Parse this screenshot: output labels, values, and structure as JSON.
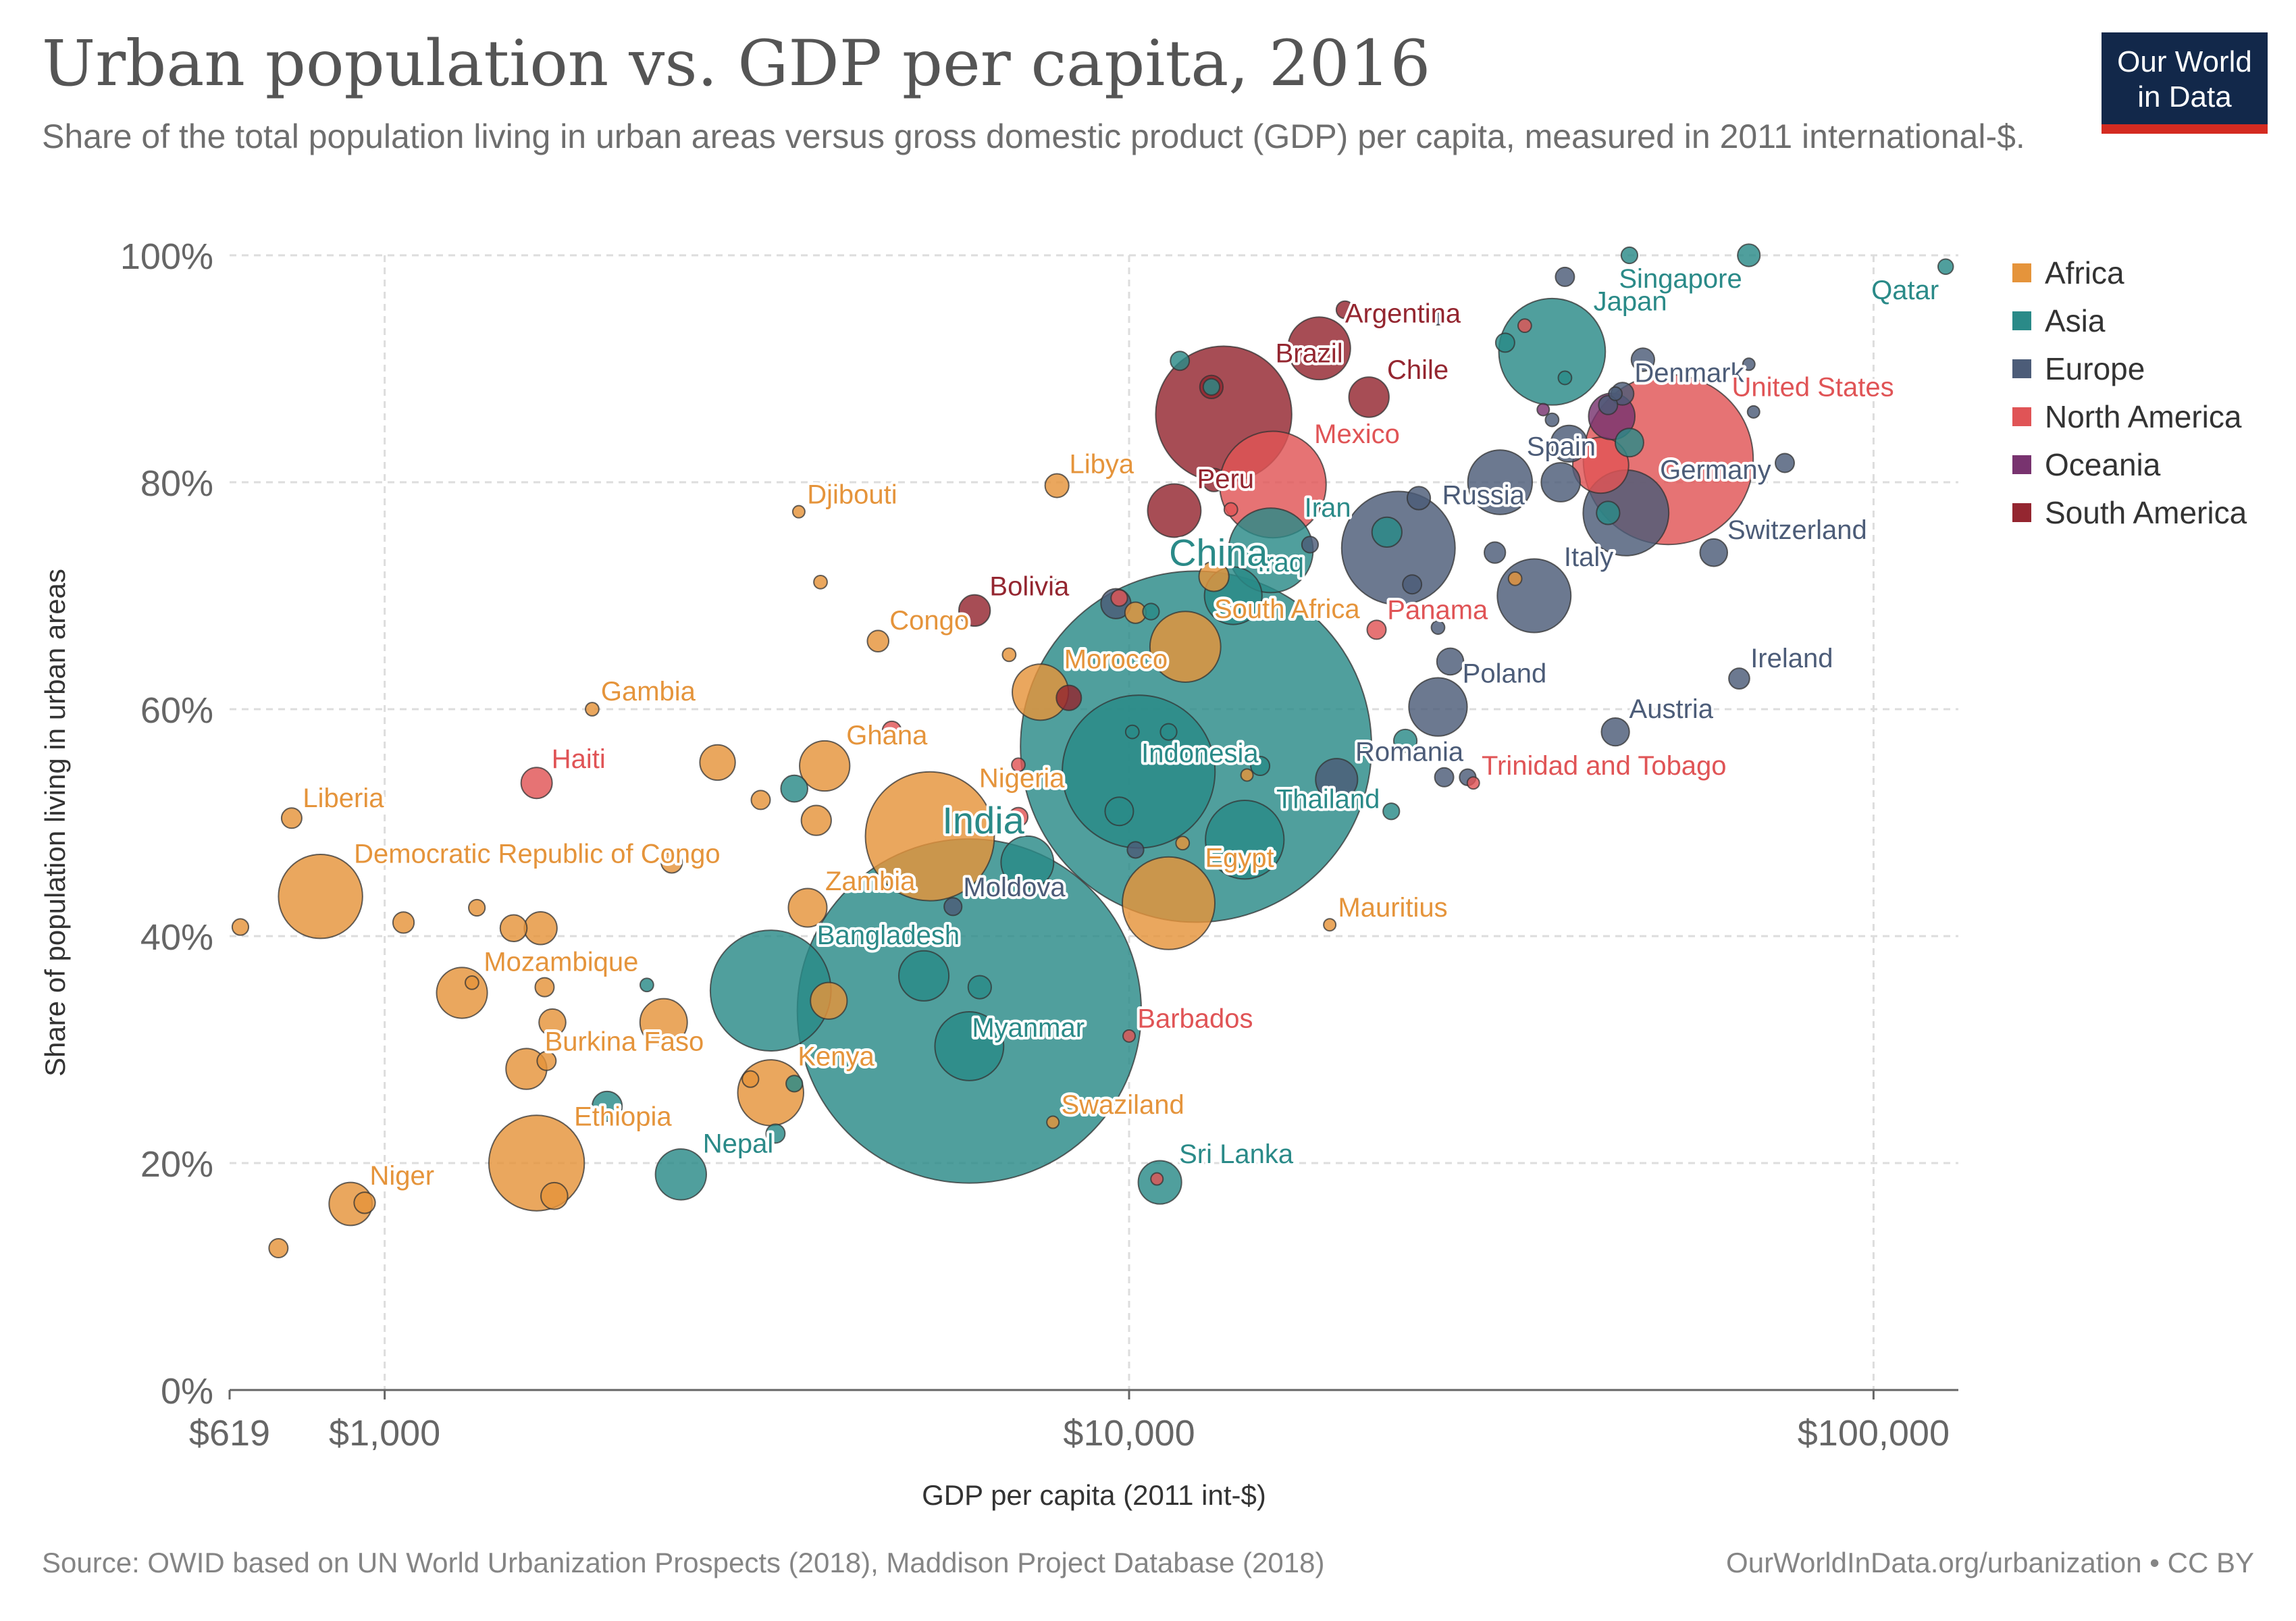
{
  "header": {
    "title": "Urban population vs. GDP per capita, 2016",
    "subtitle": "Share of the total population living in urban areas versus gross domestic product (GDP) per capita, measured in 2011 international-$.",
    "logo_line1": "Our World",
    "logo_line2": "in Data"
  },
  "footer": {
    "source": "Source: OWID based on UN World Urbanization Prospects (2018), Maddison Project Database (2018)",
    "url": "OurWorldInData.org/urbanization • CC BY"
  },
  "colors": {
    "Africa": "#e5943b",
    "Asia": "#2a8a88",
    "Europe": "#4c5c78",
    "North America": "#e05456",
    "Oceania": "#78336f",
    "South America": "#942630"
  },
  "chart_data": {
    "type": "scatter",
    "xlabel": "GDP per capita (2011 int-$)",
    "ylabel": "Share of population living in urban areas",
    "xscale": "log",
    "xlim": [
      619,
      130000
    ],
    "ylim": [
      0,
      100
    ],
    "x_ticks": [
      619,
      1000,
      10000,
      100000
    ],
    "x_tick_labels": [
      "$619",
      "$1,000",
      "$10,000",
      "$100,000"
    ],
    "y_ticks": [
      0,
      20,
      40,
      60,
      80,
      100
    ],
    "y_tick_labels": [
      "0%",
      "20%",
      "40%",
      "60%",
      "80%",
      "100%"
    ],
    "grid": true,
    "legend": [
      "Africa",
      "Asia",
      "Europe",
      "North America",
      "Oceania",
      "South America"
    ],
    "legend_position": "right",
    "points": [
      {
        "label": "Singapore",
        "x": 68000,
        "y": 100,
        "continent": "Asia",
        "pop": 5.6
      },
      {
        "label": "Qatar",
        "x": 125000,
        "y": 99,
        "continent": "Asia",
        "pop": 2.6
      },
      {
        "label": "Japan",
        "x": 37000,
        "y": 91.5,
        "continent": "Asia",
        "pop": 127
      },
      {
        "label": "Argentina",
        "x": 18000,
        "y": 91.8,
        "continent": "South America",
        "pop": 43.9
      },
      {
        "label": "Chile",
        "x": 21000,
        "y": 87.5,
        "continent": "South America",
        "pop": 18
      },
      {
        "label": "Brazil",
        "x": 13400,
        "y": 86,
        "continent": "South America",
        "pop": 207
      },
      {
        "label": "Denmark",
        "x": 46000,
        "y": 87.8,
        "continent": "Europe",
        "pop": 5.7
      },
      {
        "label": "United States",
        "x": 53000,
        "y": 82,
        "continent": "North America",
        "pop": 323
      },
      {
        "label": "Mexico",
        "x": 15600,
        "y": 79.8,
        "continent": "North America",
        "pop": 127
      },
      {
        "label": "Peru",
        "x": 11500,
        "y": 77.5,
        "continent": "South America",
        "pop": 31.8
      },
      {
        "label": "Spain",
        "x": 31500,
        "y": 80,
        "continent": "Europe",
        "pop": 46.5
      },
      {
        "label": "Germany",
        "x": 46500,
        "y": 77.3,
        "continent": "Europe",
        "pop": 82
      },
      {
        "label": "Russia",
        "x": 23000,
        "y": 74.2,
        "continent": "Europe",
        "pop": 144
      },
      {
        "label": "Iran",
        "x": 15500,
        "y": 74,
        "continent": "Asia",
        "pop": 80
      },
      {
        "label": "Switzerland",
        "x": 61000,
        "y": 73.8,
        "continent": "Europe",
        "pop": 8.4
      },
      {
        "label": "Iraq",
        "x": 13800,
        "y": 70,
        "continent": "Asia",
        "pop": 37
      },
      {
        "label": "Italy",
        "x": 35000,
        "y": 70,
        "continent": "Europe",
        "pop": 60.6
      },
      {
        "label": "Bolivia",
        "x": 6200,
        "y": 68.7,
        "continent": "South America",
        "pop": 11
      },
      {
        "label": "Panama",
        "x": 21500,
        "y": 67,
        "continent": "North America",
        "pop": 4
      },
      {
        "label": "South Africa",
        "x": 11900,
        "y": 65.5,
        "continent": "Africa",
        "pop": 56
      },
      {
        "label": "Congo",
        "x": 4600,
        "y": 66,
        "continent": "Africa",
        "pop": 5.1
      },
      {
        "label": "Libya",
        "x": 8000,
        "y": 79.7,
        "continent": "Africa",
        "pop": 6.3
      },
      {
        "label": "Djibouti",
        "x": 3600,
        "y": 77.4,
        "continent": "Africa",
        "pop": 0.9
      },
      {
        "label": "Morocco",
        "x": 7600,
        "y": 61.5,
        "continent": "Africa",
        "pop": 35.3
      },
      {
        "label": "China",
        "x": 12300,
        "y": 56.7,
        "continent": "Asia",
        "pop": 1379
      },
      {
        "label": "Indonesia",
        "x": 10300,
        "y": 54.5,
        "continent": "Asia",
        "pop": 261
      },
      {
        "label": "Poland",
        "x": 26000,
        "y": 60.2,
        "continent": "Europe",
        "pop": 38
      },
      {
        "label": "Ireland",
        "x": 66000,
        "y": 62.7,
        "continent": "Europe",
        "pop": 4.8
      },
      {
        "label": "Austria",
        "x": 45000,
        "y": 58,
        "continent": "Europe",
        "pop": 8.7
      },
      {
        "label": "Gambia",
        "x": 1900,
        "y": 60,
        "continent": "Africa",
        "pop": 2
      },
      {
        "label": "Haiti",
        "x": 1600,
        "y": 53.5,
        "continent": "North America",
        "pop": 10.8
      },
      {
        "label": "Ghana",
        "x": 3900,
        "y": 55,
        "continent": "Africa",
        "pop": 28.2
      },
      {
        "label": "Romania",
        "x": 19000,
        "y": 53.8,
        "continent": "Europe",
        "pop": 19.7
      },
      {
        "label": "Trinidad and Tobago",
        "x": 29000,
        "y": 53.5,
        "continent": "North America",
        "pop": 1.4
      },
      {
        "label": "Liberia",
        "x": 750,
        "y": 50.4,
        "continent": "Africa",
        "pop": 4.6
      },
      {
        "label": "Nigeria",
        "x": 5400,
        "y": 48.8,
        "continent": "Africa",
        "pop": 186
      },
      {
        "label": "Thailand",
        "x": 14300,
        "y": 48.5,
        "continent": "Asia",
        "pop": 69
      },
      {
        "label": "Democratic Republic of Congo",
        "x": 820,
        "y": 43.5,
        "continent": "Africa",
        "pop": 79
      },
      {
        "label": "Zambia",
        "x": 3700,
        "y": 42.5,
        "continent": "Africa",
        "pop": 16.6
      },
      {
        "label": "Moldova",
        "x": 5800,
        "y": 42.6,
        "continent": "Europe",
        "pop": 3.5
      },
      {
        "label": "Egypt",
        "x": 11300,
        "y": 42.9,
        "continent": "Africa",
        "pop": 95.7
      },
      {
        "label": "Mauritius",
        "x": 18600,
        "y": 41,
        "continent": "Africa",
        "pop": 1.3
      },
      {
        "label": "India",
        "x": 6100,
        "y": 33.4,
        "continent": "Asia",
        "pop": 1324
      },
      {
        "label": "Bangladesh",
        "x": 3300,
        "y": 35.2,
        "continent": "Asia",
        "pop": 163
      },
      {
        "label": "Myanmar",
        "x": 6100,
        "y": 30.3,
        "continent": "Asia",
        "pop": 52.9
      },
      {
        "label": "Mozambique",
        "x": 1270,
        "y": 35,
        "continent": "Africa",
        "pop": 28.8
      },
      {
        "label": "Barbados",
        "x": 10000,
        "y": 31.2,
        "continent": "North America",
        "pop": 0.3
      },
      {
        "label": "Burkina Faso",
        "x": 1550,
        "y": 28.3,
        "continent": "Africa",
        "pop": 18.6
      },
      {
        "label": "Kenya",
        "x": 3300,
        "y": 26.2,
        "continent": "Africa",
        "pop": 48.5
      },
      {
        "label": "Swaziland",
        "x": 7900,
        "y": 23.6,
        "continent": "Africa",
        "pop": 1.3
      },
      {
        "label": "Ethiopia",
        "x": 1600,
        "y": 20,
        "continent": "Africa",
        "pop": 102
      },
      {
        "label": "Nepal",
        "x": 2500,
        "y": 19,
        "continent": "Asia",
        "pop": 29
      },
      {
        "label": "Sri Lanka",
        "x": 11000,
        "y": 18.3,
        "continent": "Asia",
        "pop": 21
      },
      {
        "label": "Niger",
        "x": 900,
        "y": 16.4,
        "continent": "Africa",
        "pop": 20.7
      },
      {
        "x": 640,
        "y": 40.8,
        "continent": "Africa",
        "pop": 3
      },
      {
        "x": 720,
        "y": 12.5,
        "continent": "Africa",
        "pop": 4
      },
      {
        "x": 940,
        "y": 16.5,
        "continent": "Africa",
        "pop": 5
      },
      {
        "x": 1060,
        "y": 41.2,
        "continent": "Africa",
        "pop": 5
      },
      {
        "x": 1330,
        "y": 42.5,
        "continent": "Africa",
        "pop": 3
      },
      {
        "x": 1490,
        "y": 40.7,
        "continent": "Africa",
        "pop": 8
      },
      {
        "x": 1620,
        "y": 40.7,
        "continent": "Africa",
        "pop": 12
      },
      {
        "x": 1680,
        "y": 32.4,
        "continent": "Africa",
        "pop": 8
      },
      {
        "x": 1650,
        "y": 29,
        "continent": "Africa",
        "pop": 4
      },
      {
        "x": 1690,
        "y": 17.1,
        "continent": "Africa",
        "pop": 8
      },
      {
        "x": 1640,
        "y": 35.5,
        "continent": "Africa",
        "pop": 4
      },
      {
        "x": 1310,
        "y": 35.9,
        "continent": "Africa",
        "pop": 2
      },
      {
        "x": 2430,
        "y": 46.5,
        "continent": "Africa",
        "pop": 5
      },
      {
        "x": 2370,
        "y": 32.4,
        "continent": "Africa",
        "pop": 25
      },
      {
        "x": 2800,
        "y": 55.3,
        "continent": "Africa",
        "pop": 14
      },
      {
        "x": 3200,
        "y": 52,
        "continent": "Africa",
        "pop": 4
      },
      {
        "x": 3800,
        "y": 50.2,
        "continent": "Africa",
        "pop": 10
      },
      {
        "x": 3850,
        "y": 71.2,
        "continent": "Africa",
        "pop": 2
      },
      {
        "x": 3950,
        "y": 34.3,
        "continent": "Africa",
        "pop": 15
      },
      {
        "x": 3100,
        "y": 27.4,
        "continent": "Africa",
        "pop": 3
      },
      {
        "x": 6900,
        "y": 64.8,
        "continent": "Africa",
        "pop": 2
      },
      {
        "x": 10200,
        "y": 68.5,
        "continent": "Africa",
        "pop": 5
      },
      {
        "x": 11800,
        "y": 48.2,
        "continent": "Africa",
        "pop": 2
      },
      {
        "x": 13000,
        "y": 71.7,
        "continent": "Africa",
        "pop": 10
      },
      {
        "x": 14400,
        "y": 54.2,
        "continent": "Africa",
        "pop": 1
      },
      {
        "x": 33000,
        "y": 71.5,
        "continent": "Africa",
        "pop": 2
      },
      {
        "x": 3550,
        "y": 53,
        "continent": "Asia",
        "pop": 8
      },
      {
        "x": 3550,
        "y": 27,
        "continent": "Asia",
        "pop": 3
      },
      {
        "x": 3350,
        "y": 22.6,
        "continent": "Asia",
        "pop": 4
      },
      {
        "x": 1990,
        "y": 25,
        "continent": "Asia",
        "pop": 10
      },
      {
        "x": 2250,
        "y": 35.7,
        "continent": "Asia",
        "pop": 2
      },
      {
        "x": 5300,
        "y": 36.5,
        "continent": "Asia",
        "pop": 28
      },
      {
        "x": 6300,
        "y": 35.5,
        "continent": "Asia",
        "pop": 6
      },
      {
        "x": 7300,
        "y": 46.5,
        "continent": "Asia",
        "pop": 31
      },
      {
        "x": 9700,
        "y": 51,
        "continent": "Asia",
        "pop": 9
      },
      {
        "x": 10100,
        "y": 58,
        "continent": "Asia",
        "pop": 2
      },
      {
        "x": 10700,
        "y": 68.6,
        "continent": "Asia",
        "pop": 3
      },
      {
        "x": 11300,
        "y": 58,
        "continent": "Asia",
        "pop": 3
      },
      {
        "x": 11700,
        "y": 90.7,
        "continent": "Asia",
        "pop": 4
      },
      {
        "x": 12900,
        "y": 88.4,
        "continent": "Asia",
        "pop": 3
      },
      {
        "x": 15000,
        "y": 55,
        "continent": "Asia",
        "pop": 4
      },
      {
        "x": 22200,
        "y": 75.6,
        "continent": "Asia",
        "pop": 10
      },
      {
        "x": 22500,
        "y": 51,
        "continent": "Asia",
        "pop": 3
      },
      {
        "x": 23500,
        "y": 57.2,
        "continent": "Asia",
        "pop": 6
      },
      {
        "x": 32000,
        "y": 92.3,
        "continent": "Asia",
        "pop": 4
      },
      {
        "x": 38500,
        "y": 89.2,
        "continent": "Asia",
        "pop": 2
      },
      {
        "x": 44000,
        "y": 77.3,
        "continent": "Asia",
        "pop": 6
      },
      {
        "x": 47000,
        "y": 83.5,
        "continent": "Asia",
        "pop": 9
      },
      {
        "x": 47000,
        "y": 100,
        "continent": "Asia",
        "pop": 3
      },
      {
        "x": 9600,
        "y": 69.3,
        "continent": "Europe",
        "pop": 10
      },
      {
        "x": 10200,
        "y": 47.6,
        "continent": "Europe",
        "pop": 3
      },
      {
        "x": 17500,
        "y": 74.5,
        "continent": "Europe",
        "pop": 3
      },
      {
        "x": 18500,
        "y": 77.5,
        "continent": "Europe",
        "pop": 3
      },
      {
        "x": 24000,
        "y": 71,
        "continent": "Europe",
        "pop": 4
      },
      {
        "x": 24500,
        "y": 78.6,
        "continent": "Europe",
        "pop": 6
      },
      {
        "x": 26000,
        "y": 67.2,
        "continent": "Europe",
        "pop": 2
      },
      {
        "x": 27000,
        "y": 64.2,
        "continent": "Europe",
        "pop": 8
      },
      {
        "x": 26500,
        "y": 54,
        "continent": "Europe",
        "pop": 4
      },
      {
        "x": 28500,
        "y": 54,
        "continent": "Europe",
        "pop": 3
      },
      {
        "x": 31000,
        "y": 73.8,
        "continent": "Europe",
        "pop": 5
      },
      {
        "x": 37000,
        "y": 85.5,
        "continent": "Europe",
        "pop": 2
      },
      {
        "x": 39000,
        "y": 83.4,
        "continent": "Europe",
        "pop": 15
      },
      {
        "x": 38500,
        "y": 98.1,
        "continent": "Europe",
        "pop": 4
      },
      {
        "x": 38000,
        "y": 80,
        "continent": "Europe",
        "pop": 17
      },
      {
        "x": 44000,
        "y": 86.8,
        "continent": "Europe",
        "pop": 4
      },
      {
        "x": 45000,
        "y": 87.8,
        "continent": "Europe",
        "pop": 2
      },
      {
        "x": 49000,
        "y": 90.8,
        "continent": "Europe",
        "pop": 6
      },
      {
        "x": 68000,
        "y": 90.4,
        "continent": "Europe",
        "pop": 1
      },
      {
        "x": 76000,
        "y": 81.7,
        "continent": "Europe",
        "pop": 4
      },
      {
        "x": 26000,
        "y": 94.4,
        "continent": "Europe",
        "pop": 1
      },
      {
        "x": 69000,
        "y": 86.2,
        "continent": "Europe",
        "pop": 1
      },
      {
        "x": 4800,
        "y": 58.1,
        "continent": "North America",
        "pop": 4
      },
      {
        "x": 7100,
        "y": 50.5,
        "continent": "North America",
        "pop": 4
      },
      {
        "x": 7100,
        "y": 55.1,
        "continent": "North America",
        "pop": 2
      },
      {
        "x": 8000,
        "y": 70.7,
        "continent": "North America",
        "pop": 3
      },
      {
        "x": 9700,
        "y": 69.8,
        "continent": "North America",
        "pop": 3
      },
      {
        "x": 13700,
        "y": 77.6,
        "continent": "North America",
        "pop": 2
      },
      {
        "x": 34000,
        "y": 93.8,
        "continent": "North America",
        "pop": 2
      },
      {
        "x": 43000,
        "y": 81.5,
        "continent": "North America",
        "pop": 35
      },
      {
        "x": 10900,
        "y": 18.6,
        "continent": "North America",
        "pop": 1
      },
      {
        "x": 36000,
        "y": 86.4,
        "continent": "Oceania",
        "pop": 1
      },
      {
        "x": 44500,
        "y": 85.8,
        "continent": "Oceania",
        "pop": 24
      },
      {
        "x": 19500,
        "y": 95.2,
        "continent": "South America",
        "pop": 3.4
      },
      {
        "x": 12900,
        "y": 88.4,
        "continent": "South America",
        "pop": 6
      },
      {
        "x": 13000,
        "y": 80.2,
        "continent": "South America",
        "pop": 6
      },
      {
        "x": 8300,
        "y": 61,
        "continent": "South America",
        "pop": 7
      }
    ]
  }
}
